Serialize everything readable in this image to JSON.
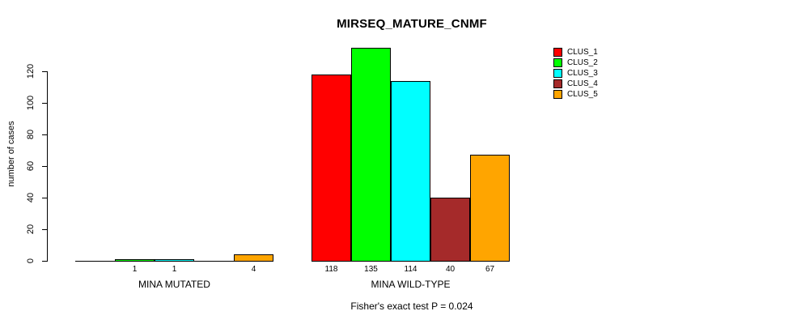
{
  "chart_data": {
    "type": "bar",
    "title": "MIRSEQ_MATURE_CNMF",
    "ylabel": "number of cases",
    "xlabel": "",
    "footnote": "Fisher's exact test P = 0.024",
    "categories": [
      "MINA MUTATED",
      "MINA WILD-TYPE"
    ],
    "series": [
      {
        "name": "CLUS_1",
        "color": "#FF0000",
        "values": [
          0,
          118
        ]
      },
      {
        "name": "CLUS_2",
        "color": "#00FF00",
        "values": [
          1,
          135
        ]
      },
      {
        "name": "CLUS_3",
        "color": "#00FFFF",
        "values": [
          1,
          114
        ]
      },
      {
        "name": "CLUS_4",
        "color": "#A52A2A",
        "values": [
          0,
          40
        ]
      },
      {
        "name": "CLUS_5",
        "color": "#FFA500",
        "values": [
          4,
          67
        ]
      }
    ],
    "bar_value_labels": {
      "MINA MUTATED": [
        "",
        "1",
        "1",
        "",
        "4"
      ],
      "MINA WILD-TYPE": [
        "118",
        "135",
        "114",
        "40",
        "67"
      ]
    },
    "yticks": [
      0,
      20,
      40,
      60,
      80,
      100,
      120
    ],
    "ylim": [
      0,
      135
    ],
    "grid": false,
    "legend_position": "top-right",
    "legend_entries": [
      "CLUS_1",
      "CLUS_2",
      "CLUS_3",
      "CLUS_4",
      "CLUS_5"
    ]
  }
}
